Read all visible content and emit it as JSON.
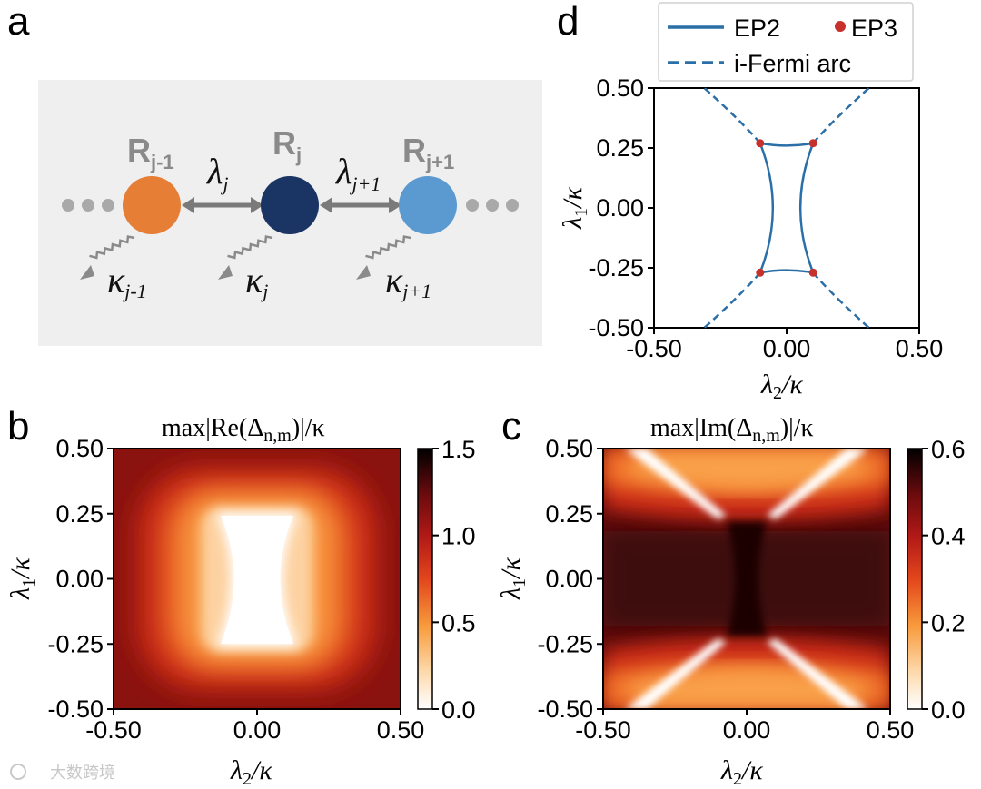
{
  "panels": {
    "a": "a",
    "b": "b",
    "c": "c",
    "d": "d"
  },
  "schematic": {
    "resonators": [
      {
        "name": "R",
        "sub": "j-1",
        "color": "#e67e35"
      },
      {
        "name": "R",
        "sub": "j",
        "color": "#1a3463"
      },
      {
        "name": "R",
        "sub": "j+1",
        "color": "#5b9ad0"
      }
    ],
    "couplings": [
      {
        "symbol": "λ",
        "sub": "j"
      },
      {
        "symbol": "λ",
        "sub": "j+1"
      }
    ],
    "losses": [
      {
        "symbol": "κ",
        "sub": "j-1"
      },
      {
        "symbol": "κ",
        "sub": "j"
      },
      {
        "symbol": "κ",
        "sub": "j+1"
      }
    ]
  },
  "chart_data": [
    {
      "panel": "d",
      "type": "line",
      "xlabel": "λ2/κ",
      "ylabel": "λ1/κ",
      "xlim": [
        -0.5,
        0.5
      ],
      "ylim": [
        -0.5,
        0.5
      ],
      "xticks": [
        "-0.50",
        "0.00",
        "0.50"
      ],
      "yticks": [
        "0.50",
        "0.25",
        "0.00",
        "-0.25",
        "-0.50"
      ],
      "legend": {
        "placement": "top",
        "entries": [
          {
            "label": "EP2",
            "style": "solid",
            "color": "#2b6fa8"
          },
          {
            "label": "EP3",
            "style": "marker",
            "color": "#c8302c"
          },
          {
            "label": "i-Fermi arc",
            "style": "dashed",
            "color": "#2b6fa8"
          }
        ]
      },
      "ep3_points": [
        {
          "x": -0.1,
          "y": 0.27
        },
        {
          "x": 0.1,
          "y": 0.27
        },
        {
          "x": -0.1,
          "y": -0.27
        },
        {
          "x": 0.1,
          "y": -0.27
        }
      ],
      "ep2_inner": {
        "y_at_center": 0.25,
        "half_width_at_center": 0.04
      },
      "fermi_arc": {
        "x_at_edge": 0.33
      }
    },
    {
      "panel": "b",
      "type": "heatmap",
      "title_prefix": "max|Re(Δ",
      "title_sub": "n,m",
      "title_suffix": ")|/κ",
      "xlabel": "λ2/κ",
      "ylabel": "λ1/κ",
      "xlim": [
        -0.5,
        0.5
      ],
      "ylim": [
        -0.5,
        0.5
      ],
      "xticks": [
        "-0.50",
        "0.00",
        "0.50"
      ],
      "yticks": [
        "0.50",
        "0.25",
        "0.00",
        "-0.25",
        "-0.50"
      ],
      "colorbar": {
        "min": 0.0,
        "max": 1.5,
        "ticks": [
          "1.5",
          "1.0",
          "0.5",
          "0.0"
        ]
      }
    },
    {
      "panel": "c",
      "type": "heatmap",
      "title_prefix": "max|Im(Δ",
      "title_sub": "n,m",
      "title_suffix": ")|/κ",
      "xlabel": "λ2/κ",
      "ylabel": "λ1/κ",
      "xlim": [
        -0.5,
        0.5
      ],
      "ylim": [
        -0.5,
        0.5
      ],
      "xticks": [
        "-0.50",
        "0.00",
        "0.50"
      ],
      "yticks": [
        "0.50",
        "0.25",
        "0.00",
        "-0.25",
        "-0.50"
      ],
      "colorbar": {
        "min": 0.0,
        "max": 0.6,
        "ticks": [
          "0.6",
          "0.4",
          "0.2",
          "0.0"
        ]
      }
    }
  ],
  "watermark": "大数跨境",
  "colors": {
    "cmap": [
      "#ffffff",
      "#fdd7a8",
      "#f89a3b",
      "#e2461c",
      "#b21a17",
      "#6d0b0e",
      "#1a0606",
      "#000000"
    ]
  }
}
